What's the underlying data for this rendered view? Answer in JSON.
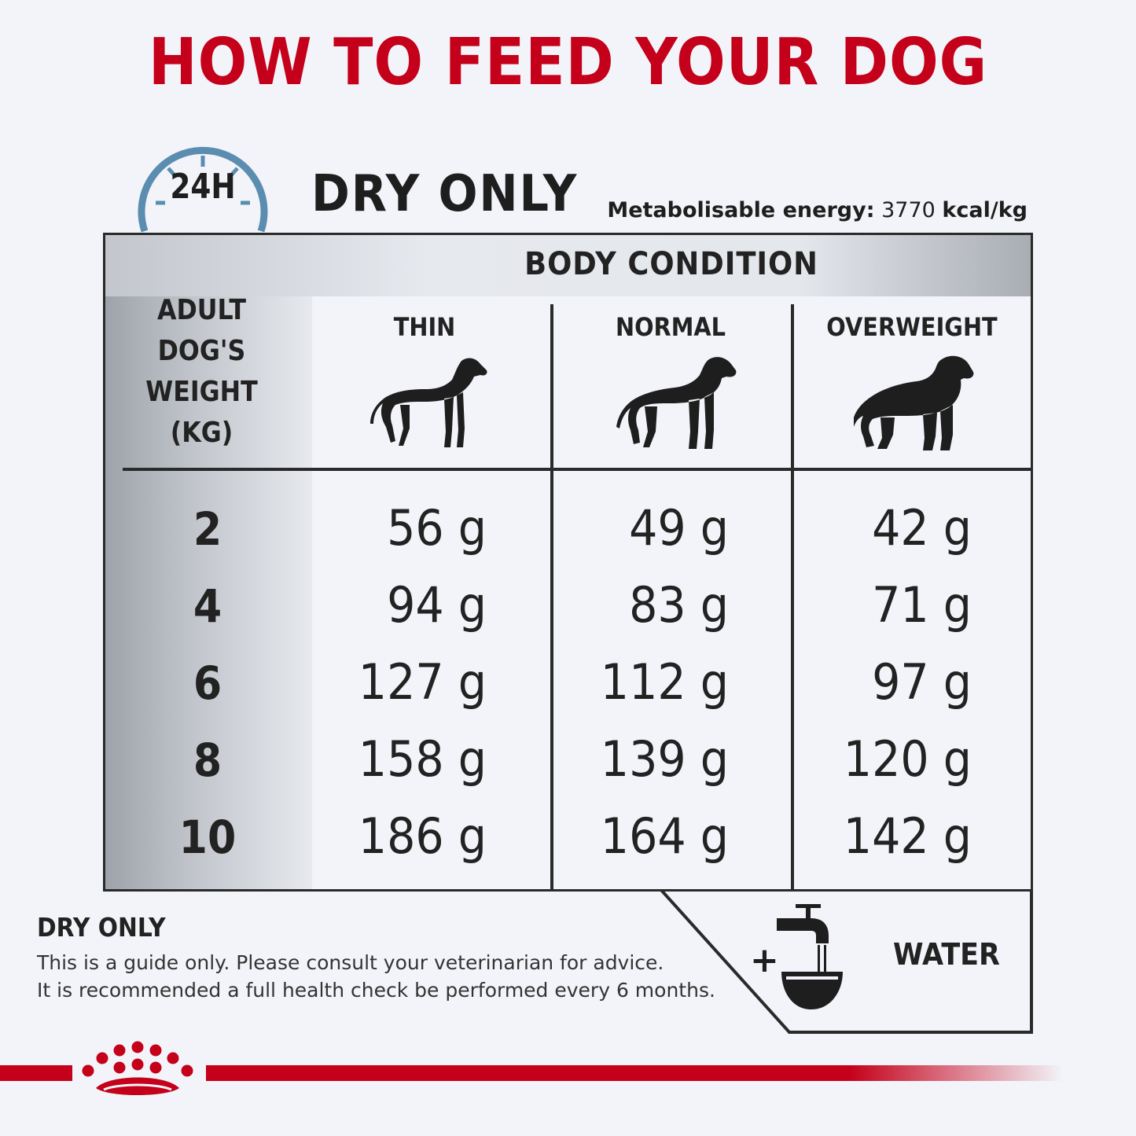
{
  "title": "HOW TO FEED YOUR DOG",
  "clock_label": "24H",
  "section_heading": "DRY ONLY",
  "energy": {
    "label": "Metabolisable energy:",
    "value": "3770",
    "unit": "kcal/kg"
  },
  "table": {
    "band_label": "BODY CONDITION",
    "weight_header": [
      "ADULT",
      "DOG'S",
      "WEIGHT",
      "(KG)"
    ],
    "columns": [
      "THIN",
      "NORMAL",
      "OVERWEIGHT"
    ],
    "rows": [
      {
        "weight": "2",
        "values": [
          "56 g",
          "49 g",
          "42 g"
        ]
      },
      {
        "weight": "4",
        "values": [
          "94 g",
          "83 g",
          "71 g"
        ]
      },
      {
        "weight": "6",
        "values": [
          "127 g",
          "112 g",
          "97 g"
        ]
      },
      {
        "weight": "8",
        "values": [
          "158 g",
          "139 g",
          "120 g"
        ]
      },
      {
        "weight": "10",
        "values": [
          "186 g",
          "164 g",
          "142 g"
        ]
      }
    ]
  },
  "water": {
    "plus": "+",
    "label": "WATER",
    "icon": "tap-bowl-icon"
  },
  "note": {
    "title": "DRY ONLY",
    "line1": "This is a guide only. Please consult your veterinarian for advice.",
    "line2": "It is recommended a full health check be performed every 6 months."
  },
  "colors": {
    "brand_red": "#c4001a",
    "clock_blue": "#5b8db0",
    "text": "#1e1e1e"
  }
}
